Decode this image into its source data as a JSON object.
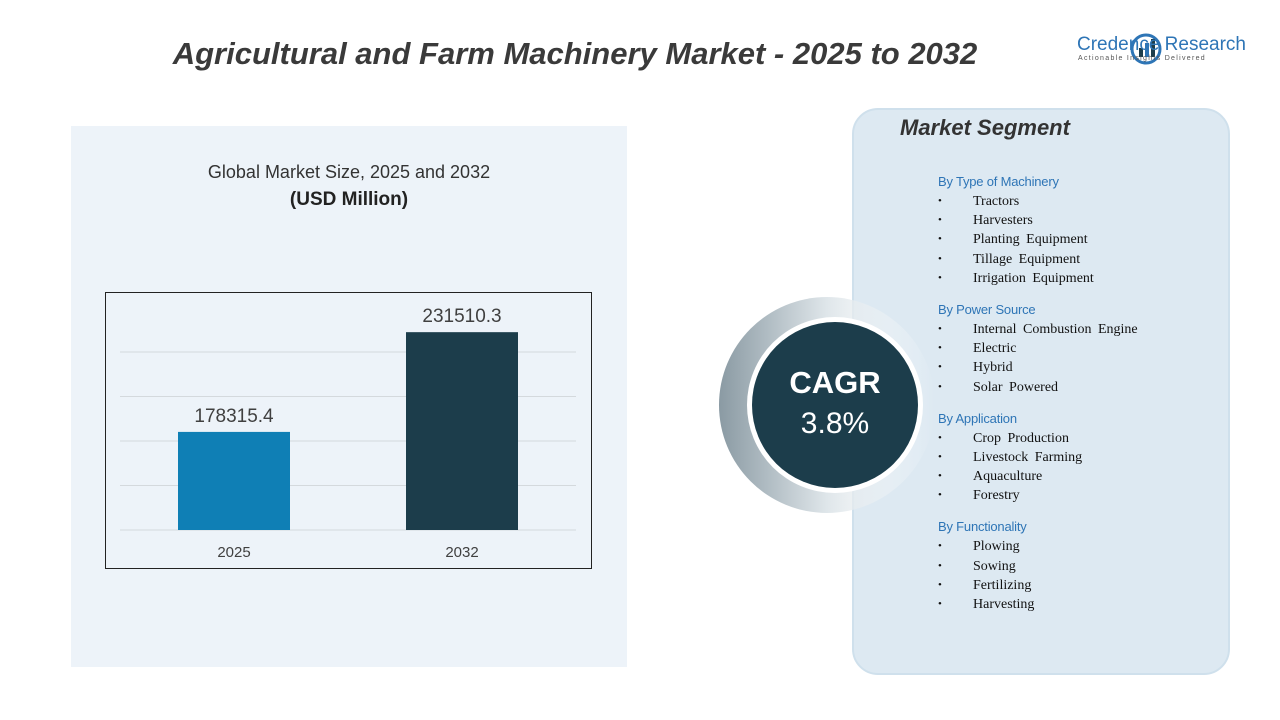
{
  "header": {
    "title": "Agricultural and Farm Machinery Market - 2025 to 2032",
    "logo_name": "Credence Research",
    "logo_tagline": "Actionable Insights Delivered"
  },
  "chart_data": {
    "type": "bar",
    "title": "Global Market Size, 2025 and 2032",
    "subtitle": "(USD Million)",
    "categories": [
      "2025",
      "2032"
    ],
    "values": [
      178315.4,
      231510.3
    ],
    "colors": [
      "#0f7fb5",
      "#1c3d4b"
    ],
    "ylim": [
      126000,
      246000
    ],
    "grid": true
  },
  "cagr": {
    "label": "CAGR",
    "value": "3.8%"
  },
  "segments": {
    "title": "Market Segment",
    "groups": [
      {
        "heading": "By Type of Machinery",
        "items": [
          "Tractors",
          "Harvesters",
          "Planting Equipment",
          "Tillage Equipment",
          "Irrigation Equipment"
        ]
      },
      {
        "heading": "By Power Source",
        "items": [
          "Internal Combustion Engine",
          "Electric",
          "Hybrid",
          "Solar Powered"
        ]
      },
      {
        "heading": "By Application",
        "items": [
          "Crop Production",
          "Livestock Farming",
          "Aquaculture",
          "Forestry"
        ]
      },
      {
        "heading": "By Functionality",
        "items": [
          "Plowing",
          "Sowing",
          "Fertilizing",
          "Harvesting"
        ]
      }
    ]
  }
}
